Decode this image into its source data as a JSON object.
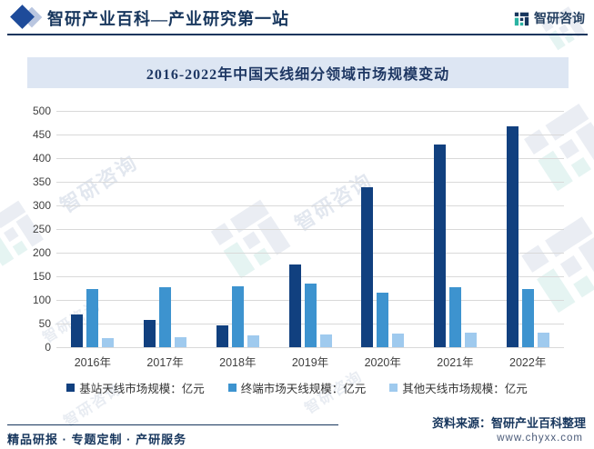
{
  "header": {
    "title": "智研产业百科—产业研究第一站",
    "brand": "智研咨询"
  },
  "chart_data": {
    "type": "bar",
    "title": "2016-2022年中国天线细分领域市场规模变动",
    "categories": [
      "2016年",
      "2017年",
      "2018年",
      "2019年",
      "2020年",
      "2021年",
      "2022年"
    ],
    "series": [
      {
        "name": "基站天线市场规模：亿元",
        "color": "#11407f",
        "values": [
          70,
          58,
          47,
          175,
          339,
          429,
          468
        ]
      },
      {
        "name": "终端市场天线规模：亿元",
        "color": "#3d93cf",
        "values": [
          124,
          126,
          129,
          134,
          116,
          126,
          124
        ]
      },
      {
        "name": "其他天线市场规模：亿元",
        "color": "#9fcaee",
        "values": [
          20,
          22,
          25,
          27,
          28,
          30,
          30
        ]
      }
    ],
    "ylabel": "",
    "xlabel": "",
    "ylim": [
      0,
      500
    ],
    "ytick_step": 50,
    "grid": true,
    "legend_position": "bottom"
  },
  "footer": {
    "services": "精品研报 · 专题定制 · 产研服务",
    "source": "资料来源：智研产业百科整理",
    "website": "www.chyxx.com"
  },
  "watermark": {
    "text": "智研咨询"
  },
  "icons": {
    "brand_diamond": "diamond",
    "logo": "zhiyan-logo"
  }
}
